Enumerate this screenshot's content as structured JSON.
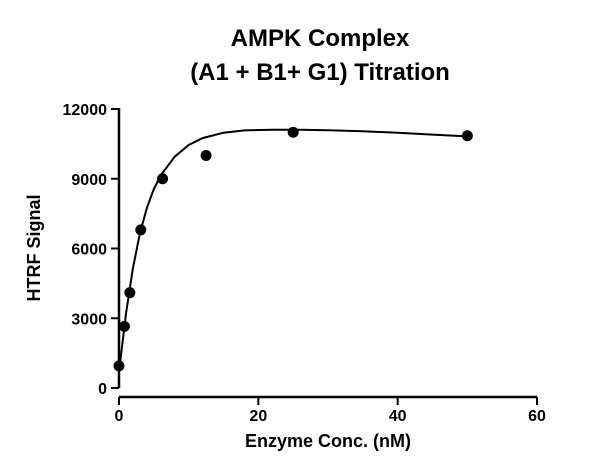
{
  "chart_data": {
    "type": "scatter",
    "title_line1": "AMPK Complex",
    "title_line2": "(A1 + B1+ G1) Titration",
    "xlabel": "Enzyme Conc. (nM)",
    "ylabel": "HTRF Signal",
    "xlim": [
      0,
      60
    ],
    "ylim": [
      0,
      12000
    ],
    "x_ticks": [
      0,
      20,
      40,
      60
    ],
    "y_ticks": [
      0,
      3000,
      6000,
      9000,
      12000
    ],
    "x_tick_labels": [
      "0",
      "20",
      "40",
      "60"
    ],
    "y_tick_labels": [
      "0",
      "3000",
      "6000",
      "9000",
      "12000"
    ],
    "grid": false,
    "points": [
      {
        "x": 0,
        "y": 950
      },
      {
        "x": 0.78,
        "y": 2650
      },
      {
        "x": 1.56,
        "y": 4100
      },
      {
        "x": 3.13,
        "y": 6800
      },
      {
        "x": 6.25,
        "y": 9000
      },
      {
        "x": 12.5,
        "y": 10000
      },
      {
        "x": 25,
        "y": 11000
      },
      {
        "x": 50,
        "y": 10850
      }
    ],
    "fit_curve": {
      "type": "line",
      "description": "fitted curve",
      "x": [
        0,
        1,
        2,
        3,
        4,
        5,
        6,
        8,
        10,
        12,
        15,
        18,
        22,
        26,
        30,
        35,
        40,
        45,
        50
      ],
      "y": [
        700,
        3200,
        5150,
        6650,
        7750,
        8550,
        9150,
        9950,
        10450,
        10750,
        10980,
        11080,
        11110,
        11110,
        11090,
        11040,
        10980,
        10900,
        10820
      ]
    }
  }
}
